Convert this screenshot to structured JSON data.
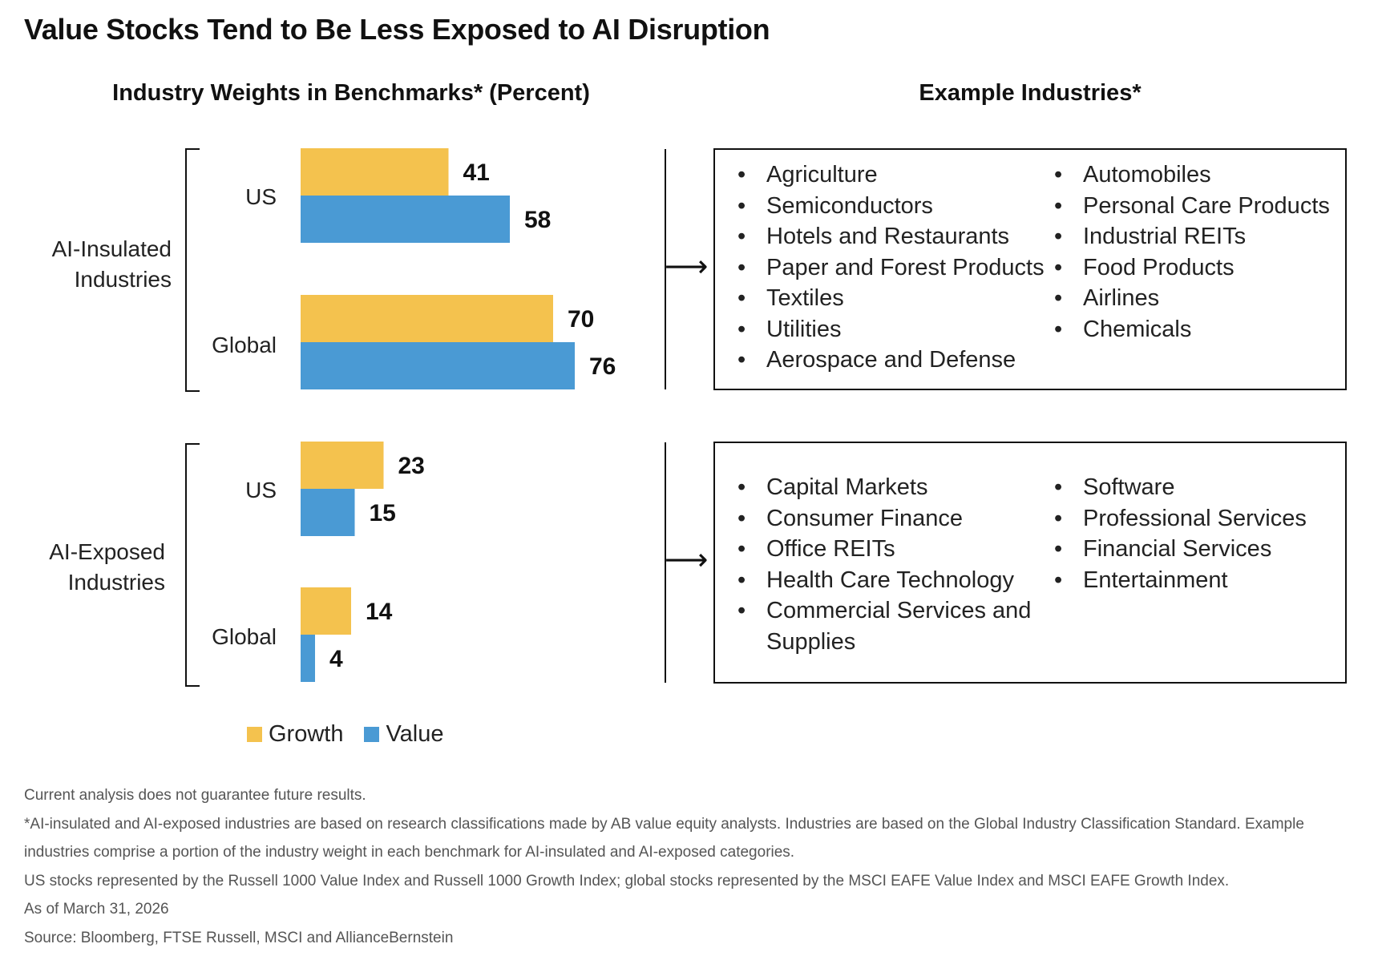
{
  "title": "Value Stocks Tend to Be Less Exposed to AI Disruption",
  "left_heading": "Industry Weights in Benchmarks* (Percent)",
  "right_heading": "Example Industries*",
  "colors": {
    "growth": "#F4C24E",
    "value": "#4A9AD4"
  },
  "chart_data": {
    "type": "bar",
    "orientation": "horizontal",
    "groups": [
      {
        "label": "AI-Insulated Industries",
        "label_lines": [
          "AI-Insulated",
          "Industries"
        ],
        "categories": [
          "US",
          "Global"
        ]
      },
      {
        "label": "AI-Exposed Industries",
        "label_lines": [
          "AI-Exposed",
          "Industries"
        ],
        "categories": [
          "US",
          "Global"
        ]
      }
    ],
    "series": [
      {
        "name": "Growth",
        "color": "#F4C24E",
        "values": [
          [
            41,
            70
          ],
          [
            23,
            14
          ]
        ]
      },
      {
        "name": "Value",
        "color": "#4A9AD4",
        "values": [
          [
            58,
            76
          ],
          [
            15,
            4
          ]
        ]
      }
    ],
    "xlim": [
      0,
      76
    ],
    "grid": false,
    "legend": "bottom"
  },
  "industries": {
    "insulated": {
      "col1": [
        "Agriculture",
        "Semiconductors",
        "Hotels and Restaurants",
        "Paper and Forest Products",
        "Textiles",
        "Utilities",
        "Aerospace and Defense"
      ],
      "col2": [
        "Automobiles",
        "Personal Care Products",
        "Industrial REITs",
        "Food Products",
        "Airlines",
        "Chemicals"
      ]
    },
    "exposed": {
      "col1": [
        "Capital Markets",
        "Consumer Finance",
        "Office REITs",
        "Health Care Technology",
        "Commercial Services and Supplies"
      ],
      "col2": [
        "Software",
        "Professional Services",
        "Financial Services",
        "Entertainment"
      ]
    }
  },
  "legend": {
    "growth": "Growth",
    "value": "Value"
  },
  "notes": [
    "Current analysis does not guarantee future results.",
    "*AI-insulated and AI-exposed industries are based on research classifications made by AB value equity analysts. Industries are based on the Global Industry Classification Standard. Example industries comprise a portion of the industry weight in each benchmark for AI-insulated and AI-exposed categories.",
    "US stocks represented by the Russell 1000 Value Index and Russell 1000 Growth Index; global stocks represented by the MSCI EAFE Value Index and MSCI EAFE Growth Index.",
    "As of March 31, 2026",
    "Source: Bloomberg, FTSE Russell, MSCI and AllianceBernstein"
  ]
}
